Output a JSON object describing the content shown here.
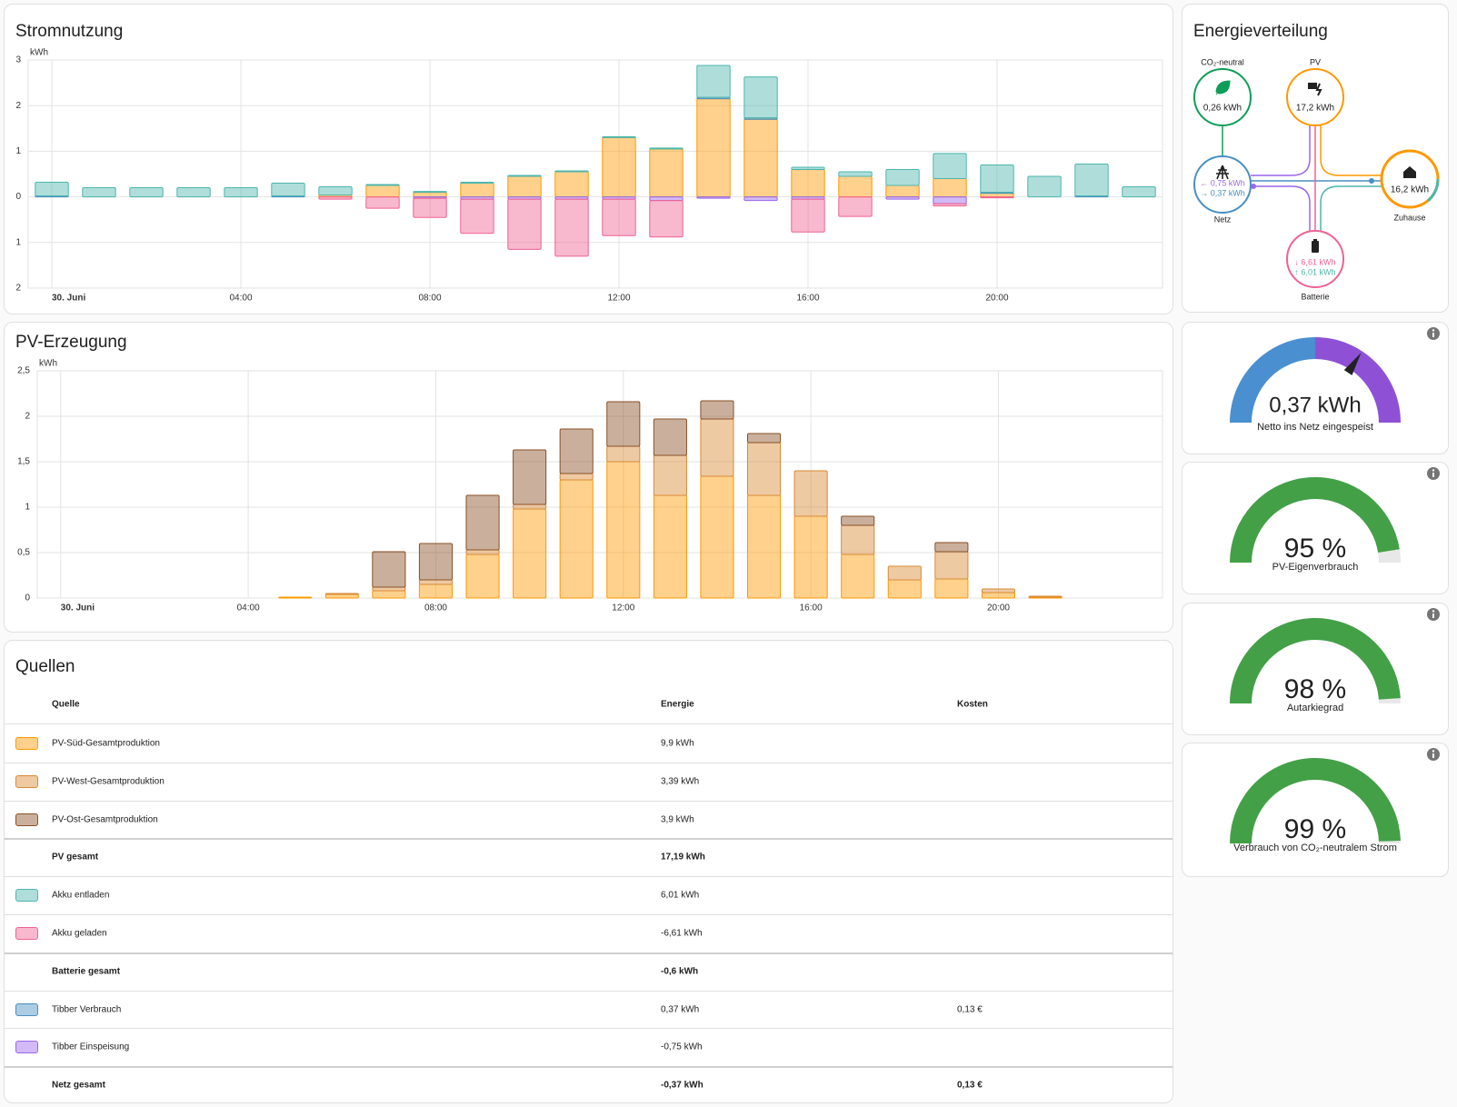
{
  "chart_data": [
    {
      "type": "bar",
      "title": "Stromnutzung",
      "y_unit": "kWh",
      "stacked": true,
      "grid": true,
      "categories": [
        "30. Juni",
        null,
        null,
        null,
        "04:00",
        null,
        null,
        null,
        "08:00",
        null,
        null,
        null,
        "12:00",
        null,
        null,
        null,
        "16:00",
        null,
        null,
        null,
        "20:00",
        null,
        null,
        null
      ],
      "ylim": [
        -2,
        3
      ],
      "yticks": [
        3,
        2,
        1,
        0,
        {
          "value": -1,
          "label": "1"
        },
        {
          "value": -2,
          "label": "2"
        }
      ],
      "series": [
        {
          "color": "#ff9800",
          "values": [
            0,
            0,
            0,
            0,
            0,
            0,
            0.04,
            0.25,
            0.1,
            0.3,
            0.45,
            0.55,
            1.3,
            1.05,
            2.15,
            1.7,
            0.6,
            0.45,
            0.25,
            0.4,
            0.08,
            0,
            0,
            0
          ]
        },
        {
          "color": "#488fc2",
          "values": [
            0.02,
            0,
            0,
            0,
            0,
            0.02,
            0,
            0,
            0,
            0,
            0,
            0,
            0,
            0,
            0.03,
            0.03,
            0,
            0,
            0,
            0,
            0.02,
            0,
            0.02,
            0
          ]
        },
        {
          "color": "#4db6ac",
          "values": [
            0.3,
            0.2,
            0.2,
            0.2,
            0.2,
            0.28,
            0.18,
            0.02,
            0.02,
            0.02,
            0.02,
            0.02,
            0.02,
            0.02,
            0.7,
            0.9,
            0.05,
            0.1,
            0.35,
            0.55,
            0.6,
            0.45,
            0.7,
            0.22
          ]
        },
        {
          "color": "#9a67ea",
          "values": [
            0,
            0,
            0,
            0,
            0,
            0,
            0,
            0,
            -0.03,
            -0.05,
            -0.05,
            -0.05,
            -0.05,
            -0.08,
            -0.03,
            -0.08,
            -0.05,
            0,
            -0.05,
            -0.15,
            0,
            0,
            0,
            0
          ]
        },
        {
          "color": "#f06292",
          "values": [
            0,
            0,
            0,
            0,
            0,
            0,
            -0.05,
            -0.25,
            -0.42,
            -0.75,
            -1.1,
            -1.25,
            -0.8,
            -0.8,
            0,
            0,
            -0.72,
            -0.43,
            0,
            -0.05,
            -0.02,
            0,
            0,
            0
          ]
        }
      ]
    },
    {
      "type": "bar",
      "title": "PV-Erzeugung",
      "y_unit": "kWh",
      "stacked": true,
      "grid": true,
      "categories": [
        "30. Juni",
        null,
        null,
        null,
        "04:00",
        null,
        null,
        null,
        "08:00",
        null,
        null,
        null,
        "12:00",
        null,
        null,
        null,
        "16:00",
        null,
        null,
        null,
        "20:00",
        null,
        null,
        null
      ],
      "ylim": [
        0,
        2.5
      ],
      "yticks": [
        0,
        {
          "value": 0.5,
          "label": "0,5"
        },
        1,
        {
          "value": 1.5,
          "label": "1,5"
        },
        2,
        {
          "value": 2.5,
          "label": "2,5"
        }
      ],
      "series": [
        {
          "color": "#ff9800",
          "values": [
            0,
            0,
            0,
            0,
            0,
            0.01,
            0.04,
            0.08,
            0.15,
            0.48,
            0.98,
            1.3,
            1.5,
            1.13,
            1.34,
            1.13,
            0.9,
            0.48,
            0.2,
            0.21,
            0.06,
            0.01,
            0,
            0
          ]
        },
        {
          "color": "#d98a33",
          "values": [
            0,
            0,
            0,
            0,
            0,
            0,
            0.01,
            0.04,
            0.05,
            0.05,
            0.05,
            0.07,
            0.17,
            0.44,
            0.63,
            0.58,
            0.5,
            0.32,
            0.15,
            0.3,
            0.04,
            0.01,
            0,
            0
          ]
        },
        {
          "color": "#8a4f24",
          "values": [
            0,
            0,
            0,
            0,
            0,
            0,
            0,
            0.39,
            0.4,
            0.6,
            0.6,
            0.49,
            0.49,
            0.4,
            0.2,
            0.1,
            0,
            0.1,
            0,
            0.1,
            0,
            0,
            0,
            0
          ]
        }
      ]
    },
    {
      "type": "gauge",
      "value": 0.37,
      "value_label": "0,37 kWh",
      "range": [
        -1,
        1
      ],
      "colors": [
        "#4a8fd0",
        "#8e51d6"
      ],
      "caption": "Netto ins Netz eingespeist"
    },
    {
      "type": "gauge",
      "value": 95,
      "value_label": "95 %",
      "range": [
        0,
        100
      ],
      "color": "#43a047",
      "caption": "PV-Eigenverbrauch"
    },
    {
      "type": "gauge",
      "value": 98,
      "value_label": "98 %",
      "range": [
        0,
        100
      ],
      "color": "#43a047",
      "caption": "Autarkiegrad"
    },
    {
      "type": "gauge",
      "value": 99,
      "value_label": "99 %",
      "range": [
        0,
        100
      ],
      "color": "#43a047",
      "caption": "Verbrauch von CO₂-neutralem Strom"
    }
  ],
  "energy_distribution": {
    "title": "Energieverteilung",
    "co2": {
      "label": "CO₂-neutral",
      "value": "0,26 kWh"
    },
    "pv": {
      "label": "PV",
      "value": "17,2 kWh"
    },
    "grid": {
      "label": "Netz",
      "out": "← 0,75 kWh",
      "in": "→ 0,37 kWh"
    },
    "home": {
      "label": "Zuhause",
      "value": "16,2 kWh"
    },
    "battery": {
      "label": "Batterie",
      "in": "↓ 6,61 kWh",
      "out": "↑ 6,01 kWh"
    }
  },
  "sources": {
    "title": "Quellen",
    "columns": [
      "Quelle",
      "Energie",
      "Kosten"
    ],
    "rows": [
      {
        "color": "#ff9800",
        "name": "PV-Süd-Gesamtproduktion",
        "energy": "9,9 kWh"
      },
      {
        "color": "#d98a33",
        "name": "PV-West-Gesamtproduktion",
        "energy": "3,39 kWh"
      },
      {
        "color": "#8a4f24",
        "name": "PV-Ost-Gesamtproduktion",
        "energy": "3,9 kWh"
      },
      {
        "name": "PV gesamt",
        "energy": "17,19 kWh",
        "total": true
      },
      {
        "color": "#4db6ac",
        "name": "Akku entladen",
        "energy": "6,01 kWh"
      },
      {
        "color": "#f06292",
        "name": "Akku geladen",
        "energy": "-6,61 kWh"
      },
      {
        "name": "Batterie gesamt",
        "energy": "-0,6 kWh",
        "total": true
      },
      {
        "color": "#488fc2",
        "name": "Tibber Verbrauch",
        "energy": "0,37 kWh",
        "cost": "0,13 €"
      },
      {
        "color": "#9a67ea",
        "name": "Tibber Einspeisung",
        "energy": "-0,75 kWh"
      },
      {
        "name": "Netz gesamt",
        "energy": "-0,37 kWh",
        "cost": "0,13 €",
        "total": true
      }
    ]
  }
}
